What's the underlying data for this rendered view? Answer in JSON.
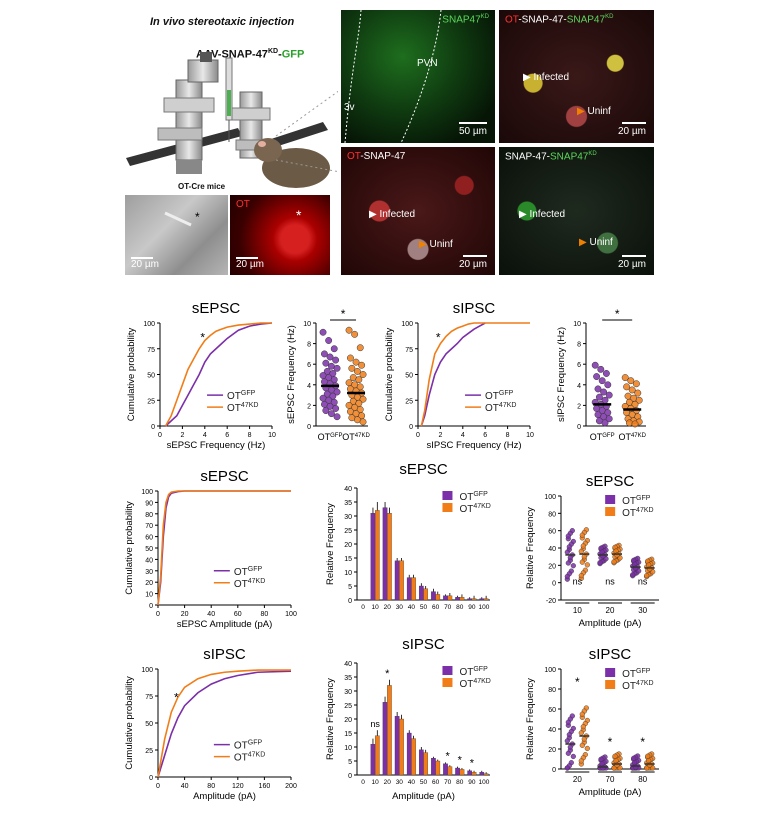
{
  "top": {
    "schematic_title": "In vivo stereotaxic injection",
    "virus_parts": [
      "AAV-SNAP-47",
      "KD",
      "-",
      "GFP"
    ],
    "mouse_label": "OT-Cre mice",
    "inset_dic": {
      "scale": "20 µm"
    },
    "inset_ot": {
      "label": "OT",
      "scale": "20 µm"
    },
    "micro_snap47kd": {
      "label_main": "SNAP47",
      "label_sup": "KD",
      "pvn": "PVN",
      "v3": "3v",
      "scale": "50 µm"
    },
    "micro_merge": {
      "parts": [
        "OT",
        "-SNAP-47-",
        "SNAP47",
        "KD"
      ],
      "infected": "Infected",
      "uninf": "Uninf",
      "scale": "20 µm"
    },
    "micro_ot_snap": {
      "parts": [
        "OT",
        "-SNAP-47"
      ],
      "infected": "Infected",
      "uninf": "Uninf",
      "scale": "20 µm"
    },
    "micro_snap_kd": {
      "parts": [
        "SNAP-47-",
        "SNAP47",
        "KD"
      ],
      "infected": "Infected",
      "uninf": "Uninf",
      "scale": "20 µm"
    }
  },
  "colors": {
    "gfp": "#7b2fa8",
    "kd": "#f07d18"
  },
  "legend": {
    "gfp_base": "OT",
    "gfp_sup": "GFP",
    "kd_base": "OT",
    "kd_sup": "47KD"
  },
  "chart_data": [
    {
      "id": "A",
      "type": "line",
      "title": "sEPSC",
      "xlabel": "sEPSC Frequency (Hz)",
      "ylabel": "Cumulative probability",
      "xlim": [
        0,
        10
      ],
      "ylim": [
        0,
        100
      ],
      "xticks": [
        "0",
        "2",
        "4",
        "6",
        "8",
        "10"
      ],
      "yticks": [
        "0",
        "25",
        "50",
        "75",
        "100"
      ],
      "annotation": "*",
      "series": [
        {
          "name": "OT GFP",
          "x": [
            0.5,
            1,
            1.5,
            2,
            2.5,
            3,
            3.5,
            4,
            4.5,
            5,
            5.5,
            6,
            7,
            8,
            9,
            10
          ],
          "y": [
            0,
            5,
            10,
            20,
            30,
            40,
            50,
            62,
            70,
            75,
            80,
            85,
            93,
            97,
            99,
            100
          ]
        },
        {
          "name": "OT 47KD",
          "x": [
            0.5,
            1,
            1.5,
            2,
            2.5,
            3,
            3.5,
            4,
            4.5,
            5,
            5.5,
            6,
            7,
            8,
            9,
            10
          ],
          "y": [
            0,
            10,
            25,
            40,
            55,
            65,
            75,
            83,
            88,
            92,
            94,
            96,
            98,
            99,
            100,
            100
          ]
        }
      ]
    },
    {
      "id": "B",
      "type": "scatter",
      "title": "",
      "xlabel": "",
      "ylabel": "sEPSC Frequency (Hz)",
      "ylim": [
        0,
        10
      ],
      "yticks": [
        "0",
        "2",
        "4",
        "6",
        "8",
        "10"
      ],
      "categories": [
        "OT GFP",
        "OT 47KD"
      ],
      "annotation": "*",
      "series": [
        {
          "name": "OT GFP",
          "mean": 3.9,
          "values": [
            9.1,
            8.3,
            7.5,
            7.0,
            6.7,
            6.4,
            6.1,
            5.8,
            5.6,
            5.3,
            5.1,
            4.9,
            4.7,
            4.5,
            4.3,
            4.1,
            3.9,
            3.7,
            3.5,
            3.3,
            3.1,
            2.9,
            2.7,
            2.5,
            2.3,
            2.1,
            1.9,
            1.7,
            1.5,
            1.2,
            0.9
          ]
        },
        {
          "name": "OT 47KD",
          "mean": 3.2,
          "values": [
            9.3,
            8.9,
            7.6,
            6.6,
            6.2,
            5.9,
            5.6,
            5.3,
            5.0,
            4.7,
            4.5,
            4.2,
            4.0,
            3.8,
            3.6,
            3.4,
            3.2,
            3.0,
            2.8,
            2.6,
            2.4,
            2.2,
            2.0,
            1.8,
            1.6,
            1.4,
            1.2,
            1.0,
            0.8,
            0.6,
            0.4
          ]
        }
      ]
    },
    {
      "id": "C",
      "type": "line",
      "title": "sIPSC",
      "xlabel": "sIPSC Frequency (Hz)",
      "ylabel": "Cumulative probability",
      "xlim": [
        0,
        10
      ],
      "ylim": [
        0,
        100
      ],
      "xticks": [
        "0",
        "2",
        "4",
        "6",
        "8",
        "10"
      ],
      "yticks": [
        "0",
        "25",
        "50",
        "75",
        "100"
      ],
      "annotation": "*",
      "series": [
        {
          "name": "OT GFP",
          "x": [
            0.3,
            0.6,
            1,
            1.5,
            2,
            2.5,
            3,
            3.5,
            4,
            4.5,
            5,
            5.5,
            6
          ],
          "y": [
            0,
            10,
            30,
            50,
            62,
            70,
            75,
            80,
            86,
            90,
            94,
            97,
            100
          ]
        },
        {
          "name": "OT 47KD",
          "x": [
            0.3,
            0.6,
            1,
            1.5,
            2,
            2.5,
            3,
            3.5,
            4,
            4.5,
            5,
            10
          ],
          "y": [
            0,
            15,
            45,
            70,
            80,
            87,
            92,
            95,
            97,
            99,
            100,
            100
          ]
        }
      ]
    },
    {
      "id": "D",
      "type": "scatter",
      "title": "",
      "xlabel": "",
      "ylabel": "sIPSC Frequency (Hz)",
      "ylim": [
        0,
        10
      ],
      "yticks": [
        "0",
        "2",
        "4",
        "6",
        "8",
        "10"
      ],
      "categories": [
        "OT GFP",
        "OT 47KD"
      ],
      "annotation": "*",
      "series": [
        {
          "name": "OT GFP",
          "mean": 2.1,
          "values": [
            5.9,
            5.5,
            5.1,
            4.8,
            4.4,
            4.0,
            3.6,
            3.3,
            3.0,
            2.8,
            2.5,
            2.3,
            2.1,
            1.9,
            1.7,
            1.5,
            1.3,
            1.1,
            0.9,
            0.7,
            0.5,
            0.3
          ]
        },
        {
          "name": "OT 47KD",
          "mean": 1.6,
          "values": [
            4.7,
            4.4,
            4.1,
            3.8,
            3.5,
            3.2,
            2.9,
            2.7,
            2.5,
            2.3,
            2.1,
            1.9,
            1.7,
            1.5,
            1.3,
            1.1,
            0.9,
            0.7,
            0.5,
            0.4,
            0.3,
            0.2
          ]
        }
      ]
    },
    {
      "id": "E",
      "type": "line",
      "title": "sEPSC",
      "xlabel": "sEPSC Amplitude (pA)",
      "ylabel": "Cumulative probability",
      "xlim": [
        0,
        100
      ],
      "ylim": [
        0,
        100
      ],
      "xticks": [
        "0",
        "20",
        "40",
        "60",
        "80",
        "100"
      ],
      "yticks": [
        "0",
        "10",
        "20",
        "30",
        "40",
        "50",
        "60",
        "70",
        "80",
        "90",
        "100"
      ],
      "series": [
        {
          "name": "OT GFP",
          "x": [
            0,
            2,
            4,
            6,
            8,
            10,
            15,
            20,
            100
          ],
          "y": [
            0,
            20,
            60,
            85,
            95,
            98,
            99.5,
            100,
            100
          ]
        },
        {
          "name": "OT 47KD",
          "x": [
            0,
            2,
            4,
            6,
            8,
            10,
            15,
            20,
            100
          ],
          "y": [
            0,
            25,
            70,
            90,
            97,
            99,
            100,
            100,
            100
          ]
        }
      ]
    },
    {
      "id": "F",
      "type": "bar",
      "title": "sEPSC",
      "xlabel": "",
      "ylabel": "Relative Frequency",
      "ylim": [
        0,
        40
      ],
      "yticks": [
        "0",
        "5",
        "10",
        "15",
        "20",
        "25",
        "30",
        "35",
        "40"
      ],
      "categories": [
        "0",
        "10",
        "20",
        "30",
        "40",
        "50",
        "60",
        "70",
        "80",
        "90",
        "100"
      ],
      "series": [
        {
          "name": "OT GFP",
          "values": [
            0,
            31,
            33,
            14,
            8,
            5,
            3,
            1.5,
            1,
            0.5,
            0.5
          ],
          "errors": [
            0,
            2,
            2,
            1,
            1,
            1,
            1,
            0.5,
            0.5,
            0.5,
            0.5
          ]
        },
        {
          "name": "OT 47KD",
          "values": [
            0,
            32,
            31,
            14,
            8,
            4,
            2,
            1.5,
            1,
            0.5,
            0.5
          ],
          "errors": [
            0,
            3,
            2,
            1,
            1,
            1,
            1,
            1,
            1,
            1,
            1
          ]
        }
      ]
    },
    {
      "id": "G",
      "type": "scatter",
      "title": "sEPSC",
      "xlabel": "Amplitude (pA)",
      "ylabel": "Relative Frequency",
      "ylim": [
        -20,
        100
      ],
      "yticks": [
        "-20",
        "0",
        "20",
        "40",
        "60",
        "80",
        "100"
      ],
      "categories": [
        "10",
        "20",
        "30"
      ],
      "group_labels": [
        "ns",
        "ns",
        "ns"
      ],
      "series": [
        {
          "name": "OT GFP",
          "means": [
            32,
            32,
            18
          ]
        },
        {
          "name": "OT 47KD",
          "means": [
            33,
            33,
            17
          ]
        }
      ]
    },
    {
      "id": "H",
      "type": "line",
      "title": "sIPSC",
      "xlabel": "Amplitude (pA)",
      "ylabel": "Cumulative probability",
      "xlim": [
        0,
        200
      ],
      "ylim": [
        0,
        100
      ],
      "xticks": [
        "0",
        "40",
        "80",
        "120",
        "160",
        "200"
      ],
      "yticks": [
        "0",
        "25",
        "50",
        "75",
        "100"
      ],
      "annotation": "*",
      "series": [
        {
          "name": "OT GFP",
          "x": [
            0,
            10,
            20,
            30,
            40,
            60,
            80,
            100,
            120,
            150,
            200
          ],
          "y": [
            0,
            20,
            40,
            55,
            66,
            78,
            86,
            91,
            94,
            97,
            98
          ]
        },
        {
          "name": "OT 47KD",
          "x": [
            0,
            10,
            20,
            30,
            40,
            60,
            80,
            100,
            120,
            150,
            200
          ],
          "y": [
            0,
            35,
            60,
            74,
            83,
            91,
            95,
            97,
            98,
            99,
            99
          ]
        }
      ]
    },
    {
      "id": "I",
      "type": "bar",
      "title": "sIPSC",
      "xlabel": "Amplitude (pA)",
      "ylabel": "Relative Frequency",
      "ylim": [
        0,
        40
      ],
      "yticks": [
        "0",
        "5",
        "10",
        "15",
        "20",
        "25",
        "30",
        "35",
        "40"
      ],
      "categories": [
        "0",
        "10",
        "20",
        "30",
        "40",
        "50",
        "60",
        "70",
        "80",
        "90",
        "100"
      ],
      "annotations": [
        "",
        "ns",
        "*",
        "",
        "",
        "",
        "",
        "*",
        "*",
        "*",
        ""
      ],
      "series": [
        {
          "name": "OT GFP",
          "values": [
            0,
            11,
            26,
            21,
            15,
            9,
            6,
            4,
            2.5,
            1.5,
            1
          ],
          "errors": [
            0,
            2,
            2,
            1.5,
            1,
            1,
            0.5,
            0.5,
            0.5,
            0.5,
            0.5
          ]
        },
        {
          "name": "OT 47KD",
          "values": [
            0,
            14,
            32,
            20,
            13,
            8,
            5,
            3,
            2,
            1,
            0.5
          ],
          "errors": [
            0,
            2,
            2,
            1.5,
            1,
            1,
            0.5,
            0.5,
            0.5,
            0.5,
            0.5
          ]
        }
      ]
    },
    {
      "id": "J",
      "type": "scatter",
      "title": "sIPSC",
      "xlabel": "Amplitude (pA)",
      "ylabel": "Relative Frequency",
      "ylim": [
        0,
        100
      ],
      "yticks": [
        "0",
        "20",
        "40",
        "60",
        "80",
        "100"
      ],
      "categories": [
        "20",
        "70",
        "80"
      ],
      "group_labels": [
        "*",
        "*",
        "*"
      ],
      "series": [
        {
          "name": "OT GFP",
          "means": [
            25,
            2,
            3
          ]
        },
        {
          "name": "OT 47KD",
          "means": [
            33,
            5,
            5
          ]
        }
      ]
    }
  ]
}
